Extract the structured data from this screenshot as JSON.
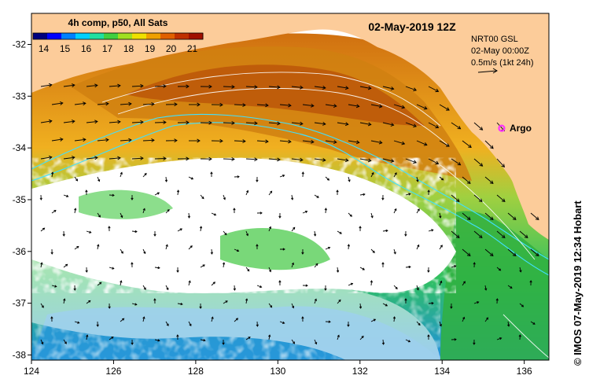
{
  "title": "02-May-2019 12Z",
  "colorbar": {
    "label": "4h comp, p50, All Sats",
    "ticks": [
      "14",
      "15",
      "16",
      "17",
      "18",
      "19",
      "20",
      "21"
    ],
    "range": [
      13.5,
      21.5
    ],
    "colors": [
      "#00007f",
      "#0000ff",
      "#0080ff",
      "#00d0ff",
      "#20e0a0",
      "#40d040",
      "#a0e020",
      "#f0e000",
      "#f0a000",
      "#e06000",
      "#c03000",
      "#a01000"
    ]
  },
  "currents_legend": {
    "line1": "NRT00 GSL",
    "line2": "02-May 00:00Z",
    "line3": "0.5m/s (1kt 24h)"
  },
  "marker": {
    "label": "Argo",
    "lon": 135.45,
    "lat": -33.62,
    "color": "#ff33ff"
  },
  "axes": {
    "x_ticks": [
      "124",
      "126",
      "128",
      "130",
      "132",
      "134",
      "136"
    ],
    "y_ticks": [
      "-32",
      "-33",
      "-34",
      "-35",
      "-36",
      "-37",
      "-38"
    ],
    "lon_range": [
      124,
      136.6
    ],
    "lat_range": [
      -38.1,
      -31.4
    ]
  },
  "land_color": "#fccc9a",
  "credit": "© IMOS 07-May-2019 12:34 Hobart"
}
